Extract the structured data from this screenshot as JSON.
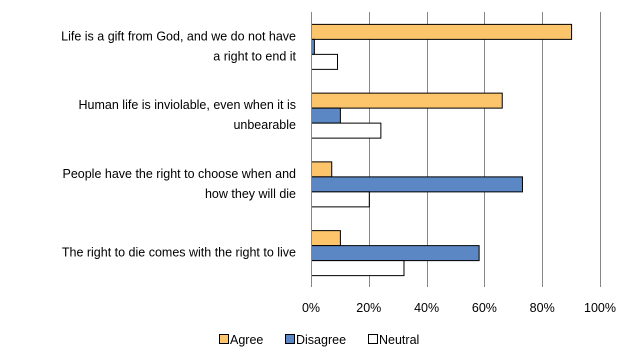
{
  "chart_data": {
    "type": "bar",
    "orientation": "horizontal",
    "categories": [
      [
        "Life is a gift from God, and we do not have",
        "a right to end it"
      ],
      [
        "Human life is inviolable, even when it is",
        "unbearable"
      ],
      [
        "People have the right to choose when and",
        "how they will die"
      ],
      [
        "The right to die comes with the right to live"
      ]
    ],
    "series": [
      {
        "name": "Agree",
        "values": [
          90,
          66,
          7,
          10
        ],
        "color": "#FCC46B"
      },
      {
        "name": "Disagree",
        "values": [
          1,
          10,
          73,
          58
        ],
        "color": "#5B87C5"
      },
      {
        "name": "Neutral",
        "values": [
          9,
          24,
          20,
          32
        ],
        "color": "#FFFFFF"
      }
    ],
    "xlim": [
      0,
      100
    ],
    "xticks": [
      "0%",
      "20%",
      "40%",
      "60%",
      "80%",
      "100%"
    ],
    "grid": true,
    "legend": "bottom"
  }
}
